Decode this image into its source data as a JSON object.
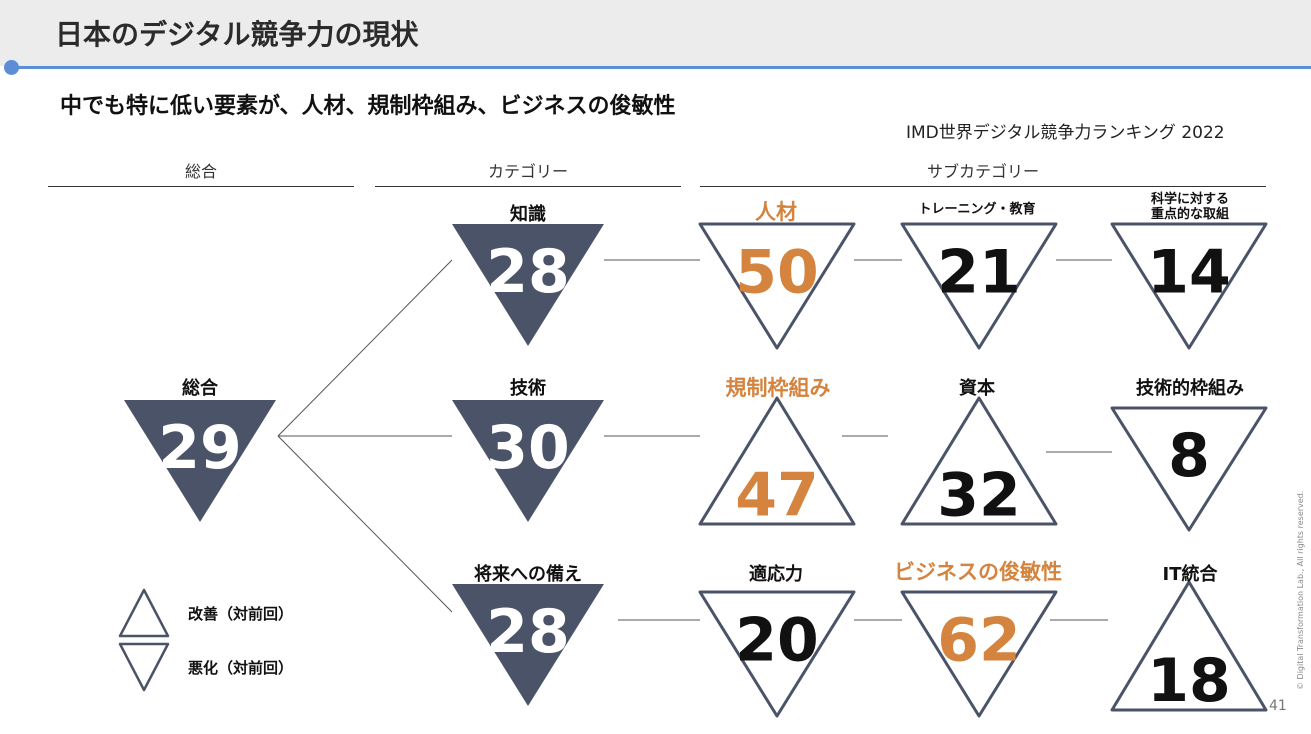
{
  "title": "日本のデジタル競争力の現状",
  "subtitle": "中でも特に低い要素が、人材、規制枠組み、ビジネスの俊敏性",
  "source": "IMD世界デジタル競争力ランキング 2022",
  "columns": {
    "overall": "総合",
    "category": "カテゴリー",
    "subcategory": "サブカテゴリー"
  },
  "colors": {
    "dark": "#4a5368",
    "orange": "#d4843e",
    "outline": "#4a5368",
    "accent": "#5b8ed6"
  },
  "nodes": {
    "overall": {
      "label": "総合",
      "rank": "29",
      "trend": "worse"
    },
    "knowledge": {
      "label": "知識",
      "rank": "28",
      "trend": "worse"
    },
    "technology": {
      "label": "技術",
      "rank": "30",
      "trend": "worse"
    },
    "future": {
      "label": "将来への備え",
      "rank": "28",
      "trend": "worse"
    },
    "talent": {
      "label": "人材",
      "rank": "50",
      "trend": "worse",
      "highlight": true
    },
    "training": {
      "label": "トレーニング・教育",
      "rank": "21",
      "trend": "worse"
    },
    "science": {
      "label": "科学に対する\n重点的な取組",
      "rank": "14",
      "trend": "worse"
    },
    "regulatory": {
      "label": "規制枠組み",
      "rank": "47",
      "trend": "better",
      "highlight": true
    },
    "capital": {
      "label": "資本",
      "rank": "32",
      "trend": "better"
    },
    "tech_frame": {
      "label": "技術的枠組み",
      "rank": "8",
      "trend": "worse"
    },
    "adaptive": {
      "label": "適応力",
      "rank": "20",
      "trend": "worse"
    },
    "agility": {
      "label": "ビジネスの俊敏性",
      "rank": "62",
      "trend": "worse",
      "highlight": true
    },
    "it_integration": {
      "label": "IT統合",
      "rank": "18",
      "trend": "better"
    }
  },
  "legend": {
    "improve": "改善（対前回）",
    "decline": "悪化（対前回）"
  },
  "copyright": "© Digital Transformation Lab., All rights reserved.",
  "page_number": "41"
}
